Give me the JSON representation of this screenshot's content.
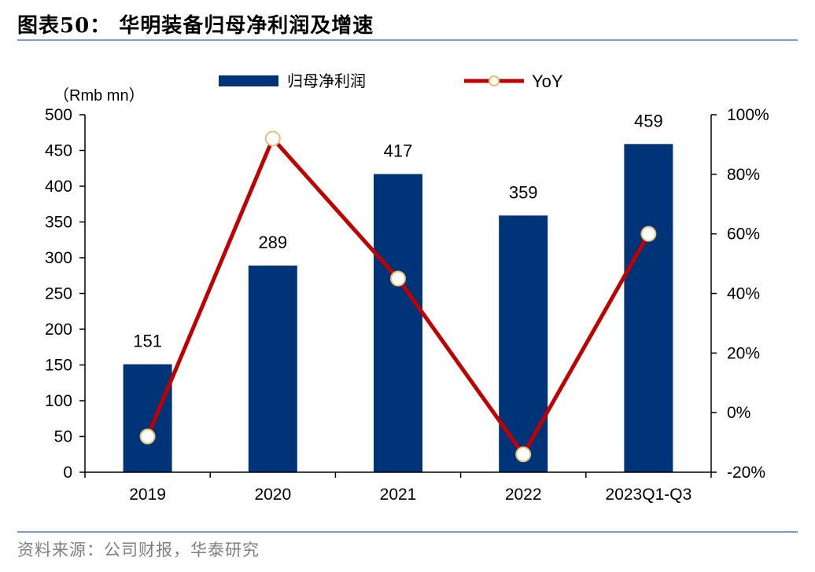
{
  "figure": {
    "title": "图表50：  华明装备归母净利润及增速",
    "source": "资料来源：公司财报，华泰研究"
  },
  "colors": {
    "bar": "#003479",
    "line": "#c00000",
    "marker_fill": "#ffffff",
    "marker_edge": "#e0c27a",
    "rule": "#7f9cc8"
  },
  "chart_data": {
    "type": "bar",
    "title": "",
    "categories": [
      "2019",
      "2020",
      "2021",
      "2022",
      "2023Q1-Q3"
    ],
    "ylabel": "（Rmb mn）",
    "ylim": [
      0,
      500
    ],
    "yticks": [
      "0",
      "50",
      "100",
      "150",
      "200",
      "250",
      "300",
      "350",
      "400",
      "450",
      "500"
    ],
    "y2lim": [
      -0.2,
      1.0
    ],
    "y2ticks": [
      "-20%",
      "0%",
      "20%",
      "40%",
      "60%",
      "80%",
      "100%"
    ],
    "legend_position": "top-center",
    "grid": false,
    "series": [
      {
        "name": "归母净利润",
        "type": "bar",
        "axis": "left",
        "values": [
          151,
          289,
          417,
          359,
          459
        ],
        "labels": [
          "151",
          "289",
          "417",
          "359",
          "459"
        ]
      },
      {
        "name": "YoY",
        "type": "line",
        "axis": "right",
        "values": [
          -0.08,
          0.92,
          0.45,
          -0.14,
          0.6
        ]
      }
    ]
  }
}
